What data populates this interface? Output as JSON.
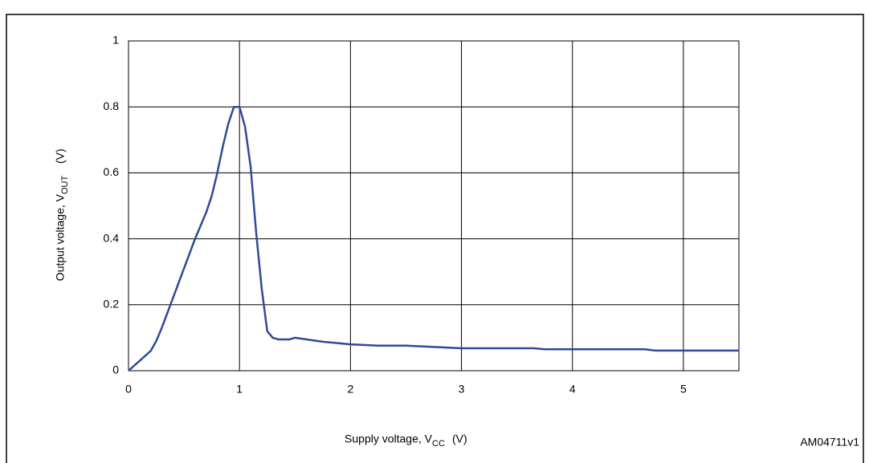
{
  "chart_data": {
    "type": "line",
    "xlabel": "Supply voltage, V",
    "xlabel_sub": "CC",
    "xlabel_unit": "(V)",
    "ylabel": "Output voltage, V",
    "ylabel_sub": "OUT",
    "ylabel_unit": "(V)",
    "annotation": "AM04711v1",
    "xlim": [
      0,
      5.5
    ],
    "xticks": [
      0,
      1,
      2,
      3,
      4,
      5
    ],
    "ylim": [
      0,
      1
    ],
    "yticks": [
      0,
      0.2,
      0.4,
      0.6,
      0.8,
      1
    ],
    "grid": true,
    "series": [
      {
        "color": "#2e4a9a",
        "x": [
          0,
          0.1,
          0.2,
          0.25,
          0.3,
          0.4,
          0.5,
          0.6,
          0.7,
          0.75,
          0.8,
          0.85,
          0.9,
          0.95,
          1.0,
          1.05,
          1.1,
          1.15,
          1.2,
          1.25,
          1.3,
          1.35,
          1.45,
          1.5,
          1.75,
          2.0,
          2.25,
          2.5,
          3.0,
          3.65,
          3.75,
          4.65,
          4.75,
          5.5
        ],
        "values": [
          0,
          0.03,
          0.06,
          0.09,
          0.13,
          0.22,
          0.31,
          0.4,
          0.48,
          0.53,
          0.6,
          0.68,
          0.75,
          0.8,
          0.8,
          0.74,
          0.62,
          0.42,
          0.25,
          0.12,
          0.1,
          0.095,
          0.095,
          0.1,
          0.088,
          0.08,
          0.076,
          0.076,
          0.068,
          0.068,
          0.065,
          0.065,
          0.061,
          0.061
        ]
      }
    ]
  }
}
